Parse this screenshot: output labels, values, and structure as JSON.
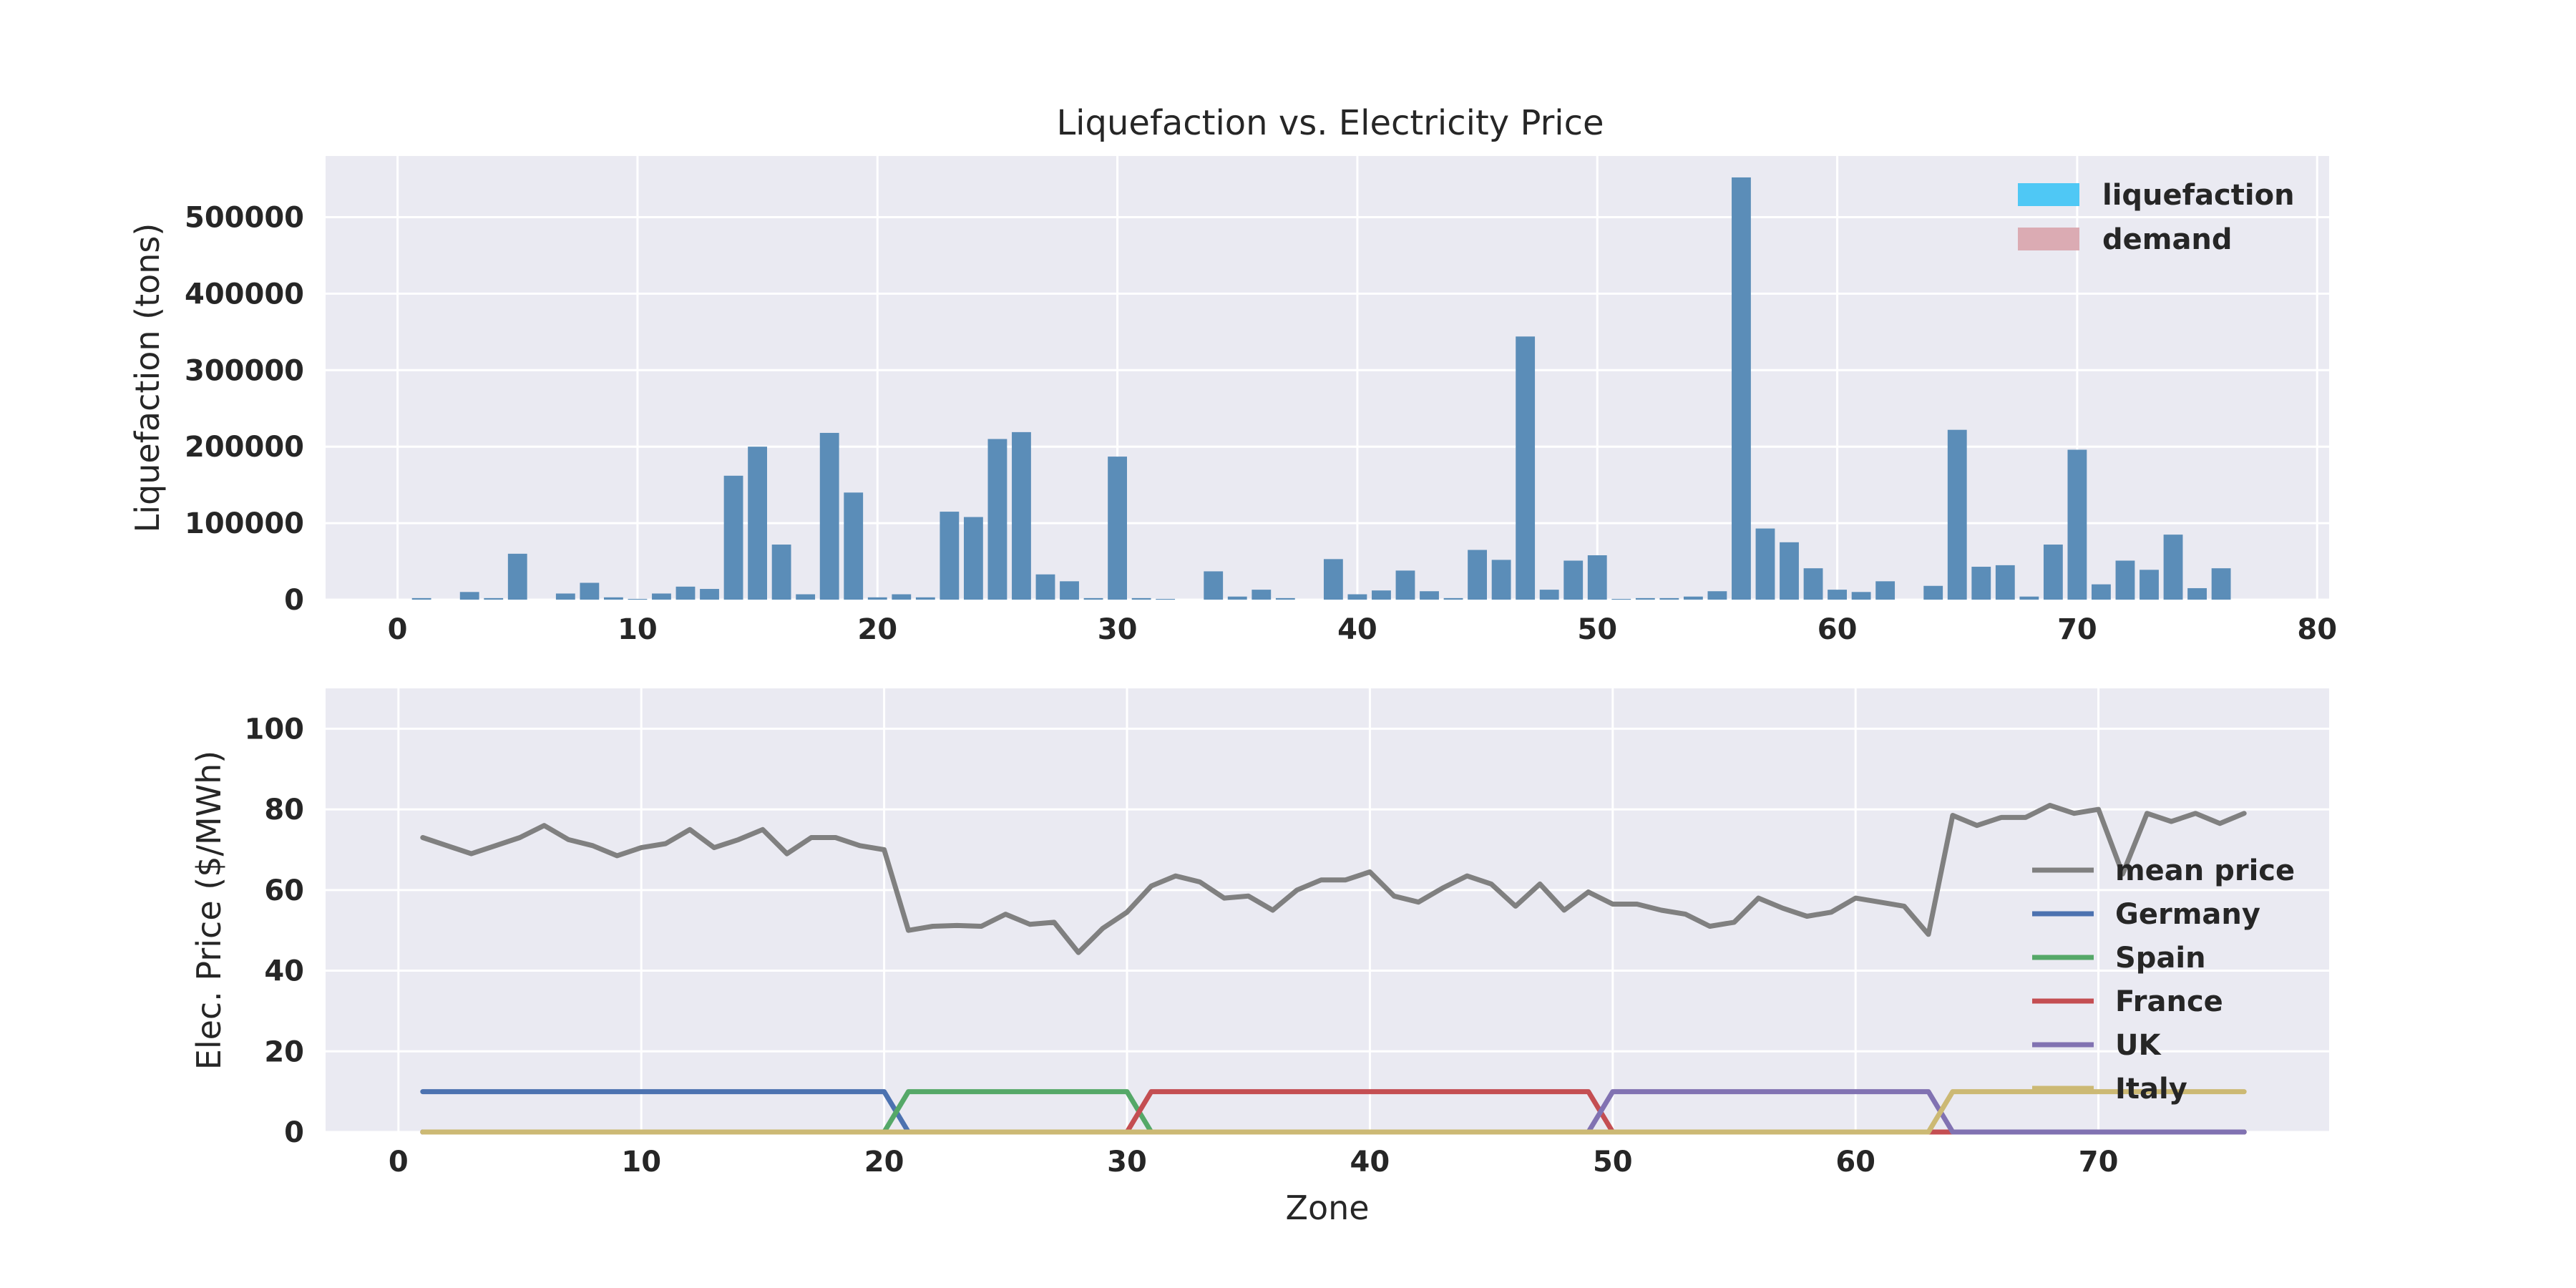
{
  "figure_title": "Liquefaction vs. Electricity Price",
  "colors": {
    "axes_bg": "#eaeaf2",
    "grid": "#ffffff",
    "bar": "#5b8db8",
    "legend_liquefaction": "#4fc8f5",
    "legend_demand": "#dbabb3",
    "mean_price": "#808080",
    "Germany": "#4c72b0",
    "Spain": "#55a868",
    "France": "#c44e52",
    "UK": "#8172b2",
    "Italy": "#ccb974"
  },
  "chart_data": [
    {
      "type": "bar",
      "title": "Liquefaction vs. Electricity Price",
      "xlabel": "",
      "ylabel": "Liquefaction (tons)",
      "xlim": [
        -3,
        80.5
      ],
      "ylim": [
        0,
        580000
      ],
      "xticks": [
        0,
        10,
        20,
        30,
        40,
        50,
        60,
        70,
        80
      ],
      "yticks": [
        0,
        100000,
        200000,
        300000,
        400000,
        500000
      ],
      "grid": true,
      "legend_position": "top-right",
      "legend": [
        "liquefaction",
        "demand"
      ],
      "series": [
        {
          "name": "liquefaction",
          "x": [
            1,
            2,
            3,
            4,
            5,
            6,
            7,
            8,
            9,
            10,
            11,
            12,
            13,
            14,
            15,
            16,
            17,
            18,
            19,
            20,
            21,
            22,
            23,
            24,
            25,
            26,
            27,
            28,
            29,
            30,
            31,
            32,
            33,
            34,
            35,
            36,
            37,
            38,
            39,
            40,
            41,
            42,
            43,
            44,
            45,
            46,
            47,
            48,
            49,
            50,
            51,
            52,
            53,
            54,
            55,
            56,
            57,
            58,
            59,
            60,
            61,
            62,
            63,
            64,
            65,
            66,
            67,
            68,
            69,
            70,
            71,
            72,
            73,
            74,
            75,
            76
          ],
          "values": [
            2000,
            0,
            10000,
            2000,
            60000,
            0,
            8000,
            22000,
            3000,
            1000,
            8000,
            17000,
            14000,
            162000,
            200000,
            72000,
            7000,
            218000,
            140000,
            3000,
            7000,
            3000,
            115000,
            108000,
            210000,
            219000,
            33000,
            24000,
            2000,
            187000,
            2000,
            1000,
            0,
            37000,
            4000,
            13000,
            2000,
            0,
            53000,
            7000,
            12000,
            38000,
            11000,
            2000,
            65000,
            52000,
            344000,
            13000,
            51000,
            58000,
            1000,
            2000,
            2000,
            4000,
            11000,
            552000,
            93000,
            75000,
            41000,
            13000,
            10000,
            24000,
            0,
            18000,
            222000,
            43000,
            45000,
            4000,
            72000,
            196000,
            20000,
            51000,
            39000,
            85000,
            15000,
            41000
          ]
        }
      ]
    },
    {
      "type": "line",
      "xlabel": "Zone",
      "ylabel": "Elec. Price ($/MWh)",
      "xlim": [
        -3,
        79.5
      ],
      "ylim": [
        0,
        110
      ],
      "xticks": [
        0,
        10,
        20,
        30,
        40,
        50,
        60,
        70
      ],
      "yticks": [
        0,
        20,
        40,
        60,
        80,
        100
      ],
      "grid": true,
      "legend_position": "right",
      "x": [
        1,
        2,
        3,
        4,
        5,
        6,
        7,
        8,
        9,
        10,
        11,
        12,
        13,
        14,
        15,
        16,
        17,
        18,
        19,
        20,
        21,
        22,
        23,
        24,
        25,
        26,
        27,
        28,
        29,
        30,
        31,
        32,
        33,
        34,
        35,
        36,
        37,
        38,
        39,
        40,
        41,
        42,
        43,
        44,
        45,
        46,
        47,
        48,
        49,
        50,
        51,
        52,
        53,
        54,
        55,
        56,
        57,
        58,
        59,
        60,
        61,
        62,
        63,
        64,
        65,
        66,
        67,
        68,
        69,
        70,
        71,
        72,
        73,
        74,
        75,
        76
      ],
      "series": [
        {
          "name": "mean price",
          "values": [
            73,
            71,
            69,
            71,
            73,
            76,
            72.5,
            71,
            68.5,
            70.5,
            71.5,
            75,
            70.5,
            72.5,
            75,
            69,
            73,
            73,
            71,
            70,
            50,
            51,
            51.2,
            51,
            54,
            51.5,
            52,
            44.5,
            50.5,
            54.5,
            61,
            63.5,
            62,
            58,
            58.5,
            55,
            60,
            62.5,
            62.5,
            64.5,
            58.5,
            57,
            60.5,
            63.5,
            61.5,
            56,
            61.5,
            55,
            59.5,
            56.5,
            56.5,
            55,
            54,
            51,
            52,
            58,
            55.5,
            53.5,
            54.5,
            58,
            57,
            56,
            49,
            78.5,
            76,
            78,
            78,
            81,
            79,
            80,
            64,
            79,
            77,
            79,
            76.5,
            79
          ]
        },
        {
          "name": "Germany",
          "values": [
            10,
            10,
            10,
            10,
            10,
            10,
            10,
            10,
            10,
            10,
            10,
            10,
            10,
            10,
            10,
            10,
            10,
            10,
            10,
            10,
            0,
            0,
            0,
            0,
            0,
            0,
            0,
            0,
            0,
            0,
            0,
            0,
            0,
            0,
            0,
            0,
            0,
            0,
            0,
            0,
            0,
            0,
            0,
            0,
            0,
            0,
            0,
            0,
            0,
            0,
            0,
            0,
            0,
            0,
            0,
            0,
            0,
            0,
            0,
            0,
            0,
            0,
            0,
            0,
            0,
            0,
            0,
            0,
            0,
            0,
            0,
            0,
            0,
            0,
            0,
            0
          ]
        },
        {
          "name": "Spain",
          "values": [
            0,
            0,
            0,
            0,
            0,
            0,
            0,
            0,
            0,
            0,
            0,
            0,
            0,
            0,
            0,
            0,
            0,
            0,
            0,
            0,
            10,
            10,
            10,
            10,
            10,
            10,
            10,
            10,
            10,
            10,
            0,
            0,
            0,
            0,
            0,
            0,
            0,
            0,
            0,
            0,
            0,
            0,
            0,
            0,
            0,
            0,
            0,
            0,
            0,
            0,
            0,
            0,
            0,
            0,
            0,
            0,
            0,
            0,
            0,
            0,
            0,
            0,
            0,
            0,
            0,
            0,
            0,
            0,
            0,
            0,
            0,
            0,
            0,
            0,
            0,
            0
          ]
        },
        {
          "name": "France",
          "values": [
            0,
            0,
            0,
            0,
            0,
            0,
            0,
            0,
            0,
            0,
            0,
            0,
            0,
            0,
            0,
            0,
            0,
            0,
            0,
            0,
            0,
            0,
            0,
            0,
            0,
            0,
            0,
            0,
            0,
            0,
            10,
            10,
            10,
            10,
            10,
            10,
            10,
            10,
            10,
            10,
            10,
            10,
            10,
            10,
            10,
            10,
            10,
            10,
            10,
            0,
            0,
            0,
            0,
            0,
            0,
            0,
            0,
            0,
            0,
            0,
            0,
            0,
            0,
            0,
            0,
            0,
            0,
            0,
            0,
            0,
            0,
            0,
            0,
            0,
            0,
            0
          ]
        },
        {
          "name": "UK",
          "values": [
            0,
            0,
            0,
            0,
            0,
            0,
            0,
            0,
            0,
            0,
            0,
            0,
            0,
            0,
            0,
            0,
            0,
            0,
            0,
            0,
            0,
            0,
            0,
            0,
            0,
            0,
            0,
            0,
            0,
            0,
            0,
            0,
            0,
            0,
            0,
            0,
            0,
            0,
            0,
            0,
            0,
            0,
            0,
            0,
            0,
            0,
            0,
            0,
            0,
            10,
            10,
            10,
            10,
            10,
            10,
            10,
            10,
            10,
            10,
            10,
            10,
            10,
            10,
            0,
            0,
            0,
            0,
            0,
            0,
            0,
            0,
            0,
            0,
            0,
            0,
            0
          ]
        },
        {
          "name": "Italy",
          "values": [
            0,
            0,
            0,
            0,
            0,
            0,
            0,
            0,
            0,
            0,
            0,
            0,
            0,
            0,
            0,
            0,
            0,
            0,
            0,
            0,
            0,
            0,
            0,
            0,
            0,
            0,
            0,
            0,
            0,
            0,
            0,
            0,
            0,
            0,
            0,
            0,
            0,
            0,
            0,
            0,
            0,
            0,
            0,
            0,
            0,
            0,
            0,
            0,
            0,
            0,
            0,
            0,
            0,
            0,
            0,
            0,
            0,
            0,
            0,
            0,
            0,
            0,
            0,
            10,
            10,
            10,
            10,
            10,
            10,
            10,
            10,
            10,
            10,
            10,
            10,
            10
          ]
        }
      ]
    }
  ]
}
